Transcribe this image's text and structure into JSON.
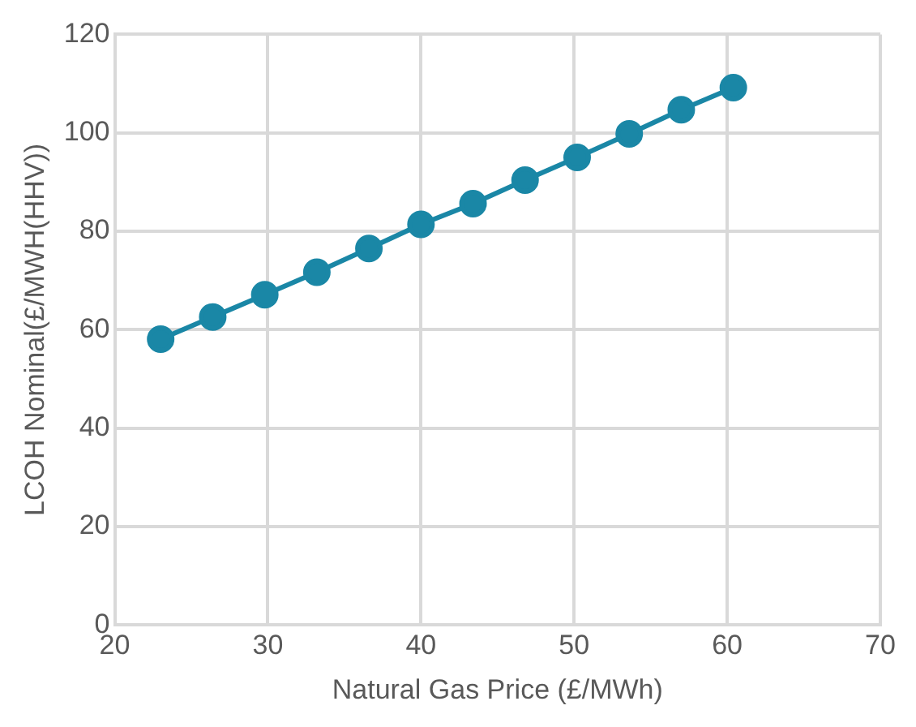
{
  "chart_data": {
    "type": "line",
    "xlabel": "Natural Gas Price (£/MWh)",
    "ylabel": "LCOH Nominal(£/MWH(HHV))",
    "x": [
      23,
      26.4,
      29.8,
      33.2,
      36.6,
      40,
      43.4,
      46.8,
      50.2,
      53.6,
      57,
      60.4
    ],
    "series": [
      {
        "color": "#1a87a6",
        "values": [
          58.1,
          62.6,
          67.1,
          71.7,
          76.5,
          81.4,
          85.6,
          90.4,
          95,
          99.8,
          104.7,
          109.2
        ]
      }
    ],
    "xlim": [
      20,
      70
    ],
    "xticks": [
      20,
      30,
      40,
      50,
      60,
      70
    ],
    "ylim": [
      0,
      120
    ],
    "yticks": [
      0,
      20,
      40,
      60,
      80,
      100,
      120
    ],
    "grid": true,
    "legend": false,
    "marker": "circle",
    "line_style": "solid"
  }
}
